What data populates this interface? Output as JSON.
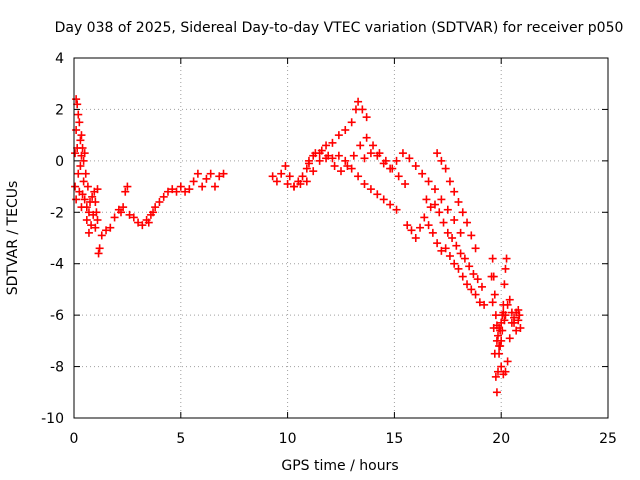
{
  "chart_data": {
    "type": "scatter",
    "title": "Day 038 of 2025, Sidereal Day-to-day VTEC variation (SDTVAR) for receiver p050",
    "xlabel": "GPS time / hours",
    "ylabel": "SDTVAR / TECUs",
    "xlim": [
      0,
      25
    ],
    "ylim": [
      -10,
      4
    ],
    "x_ticks": [
      0,
      5,
      10,
      15,
      20,
      25
    ],
    "y_ticks": [
      -10,
      -8,
      -6,
      -4,
      -2,
      0,
      2,
      4
    ],
    "x_tick_labels": [
      "0",
      "5",
      "10",
      "15",
      "20",
      "25"
    ],
    "y_tick_labels": [
      "-10",
      "-8",
      "-6",
      "-4",
      "-2",
      "0",
      "2",
      "4"
    ],
    "grid": true,
    "marker": "+",
    "series_color": "#ff0000",
    "series": [
      {
        "name": "SDTVAR",
        "x": [
          0.05,
          0.05,
          0.1,
          0.1,
          0.1,
          0.15,
          0.15,
          0.2,
          0.2,
          0.25,
          0.25,
          0.3,
          0.3,
          0.35,
          0.35,
          0.35,
          0.4,
          0.4,
          0.45,
          0.45,
          0.5,
          0.5,
          0.55,
          0.6,
          0.6,
          0.65,
          0.7,
          0.7,
          0.75,
          0.8,
          0.85,
          0.9,
          0.95,
          1.0,
          1.0,
          1.05,
          1.1,
          1.1,
          1.15,
          1.2,
          1.3,
          1.5,
          1.7,
          1.9,
          2.1,
          2.2,
          2.3,
          2.4,
          2.5,
          2.6,
          2.8,
          3.0,
          3.2,
          3.4,
          3.5,
          3.6,
          3.7,
          3.8,
          4.0,
          4.2,
          4.4,
          4.6,
          4.8,
          5.0,
          5.2,
          5.4,
          5.6,
          5.8,
          6.0,
          6.2,
          6.4,
          6.6,
          6.8,
          7.0,
          9.3,
          9.5,
          9.7,
          9.9,
          10.1,
          10.3,
          10.5,
          10.7,
          10.9,
          11.0,
          11.2,
          11.5,
          11.8,
          12.1,
          12.4,
          12.7,
          13.0,
          13.2,
          13.3,
          13.5,
          13.7,
          10.0,
          10.3,
          10.6,
          10.9,
          11.2,
          11.5,
          11.8,
          12.1,
          12.4,
          12.7,
          13.0,
          13.3,
          13.6,
          13.9,
          14.2,
          14.5,
          14.8,
          15.1,
          11.0,
          11.3,
          11.6,
          11.9,
          12.2,
          12.5,
          12.8,
          13.1,
          13.4,
          13.7,
          14.0,
          14.3,
          14.6,
          14.9,
          15.2,
          15.5,
          13.6,
          13.9,
          14.2,
          14.5,
          14.8,
          15.1,
          15.4,
          15.7,
          16.0,
          16.3,
          16.6,
          16.9,
          17.2,
          17.5,
          17.8,
          18.1,
          15.6,
          15.8,
          16.0,
          16.2,
          16.4,
          16.6,
          16.8,
          17.0,
          17.2,
          17.4,
          17.6,
          17.8,
          18.0,
          18.2,
          18.4,
          18.6,
          18.8,
          19.0,
          19.2,
          16.5,
          16.7,
          16.9,
          17.1,
          17.3,
          17.5,
          17.7,
          17.9,
          18.1,
          18.3,
          18.5,
          18.7,
          18.9,
          19.1,
          17.0,
          17.2,
          17.4,
          17.6,
          17.8,
          18.0,
          18.2,
          18.4,
          18.6,
          18.8,
          19.6,
          19.65,
          19.7,
          19.75,
          19.8,
          19.85,
          19.9,
          19.95,
          20.0,
          20.05,
          20.1,
          20.15,
          20.2,
          20.3,
          20.4,
          20.5,
          20.6,
          20.7,
          20.8,
          20.85,
          20.9,
          19.8,
          19.9,
          20.0,
          20.1,
          20.2,
          20.3,
          20.4,
          20.5,
          20.6,
          20.7,
          20.8,
          19.55,
          19.6,
          19.65,
          19.7,
          19.75,
          19.8,
          19.85,
          19.9,
          19.95,
          20.0,
          20.05,
          20.1,
          20.15,
          20.2,
          20.25
        ],
        "y": [
          -1.0,
          0.3,
          2.4,
          1.2,
          -1.5,
          2.2,
          0.5,
          1.8,
          -0.5,
          1.5,
          -1.2,
          0.8,
          -0.2,
          1.0,
          -1.8,
          0.2,
          0.5,
          -1.3,
          0.0,
          -0.8,
          0.3,
          -1.5,
          -0.5,
          -1.8,
          -2.3,
          -1.0,
          -2.0,
          -2.8,
          -1.6,
          -2.5,
          -1.4,
          -2.1,
          -1.2,
          -1.6,
          -2.6,
          -2.0,
          -1.1,
          -2.3,
          -3.6,
          -3.4,
          -2.9,
          -2.7,
          -2.6,
          -2.2,
          -1.9,
          -2.0,
          -1.8,
          -1.2,
          -1.0,
          -2.1,
          -2.2,
          -2.4,
          -2.5,
          -2.3,
          -2.4,
          -2.1,
          -2.0,
          -1.8,
          -1.6,
          -1.4,
          -1.2,
          -1.1,
          -1.2,
          -1.0,
          -1.2,
          -1.1,
          -0.8,
          -0.5,
          -1.0,
          -0.7,
          -0.5,
          -1.0,
          -0.6,
          -0.5,
          -0.6,
          -0.8,
          -0.5,
          -0.2,
          -0.6,
          -1.0,
          -0.8,
          -0.6,
          -0.3,
          0.0,
          0.2,
          0.3,
          0.6,
          0.7,
          1.0,
          1.2,
          1.5,
          2.0,
          2.3,
          2.0,
          1.7,
          -0.9,
          -1.0,
          -0.9,
          -0.8,
          -0.4,
          0.0,
          0.1,
          0.1,
          0.2,
          0.0,
          -0.3,
          -0.6,
          -0.9,
          -1.1,
          -1.3,
          -1.5,
          -1.7,
          -1.9,
          -0.1,
          0.3,
          0.4,
          0.2,
          -0.2,
          -0.4,
          -0.2,
          0.2,
          0.6,
          0.9,
          0.6,
          0.3,
          0.0,
          -0.3,
          -0.6,
          -0.9,
          0.1,
          0.3,
          0.2,
          -0.1,
          -0.3,
          0.0,
          0.3,
          0.1,
          -0.2,
          -0.5,
          -0.8,
          -1.1,
          -1.5,
          -1.9,
          -2.3,
          -2.8,
          -2.5,
          -2.7,
          -3.0,
          -2.6,
          -2.2,
          -2.5,
          -2.8,
          -3.2,
          -3.5,
          -3.4,
          -3.7,
          -4.0,
          -4.2,
          -4.5,
          -4.8,
          -5.0,
          -5.2,
          -5.5,
          -5.6,
          -1.5,
          -1.8,
          -1.7,
          -2.0,
          -2.4,
          -2.8,
          -3.0,
          -3.3,
          -3.6,
          -3.8,
          -4.1,
          -4.4,
          -4.6,
          -4.9,
          0.3,
          0.0,
          -0.3,
          -0.8,
          -1.2,
          -1.6,
          -2.0,
          -2.4,
          -2.9,
          -3.4,
          -3.8,
          -4.5,
          -5.2,
          -6.0,
          -6.4,
          -6.8,
          -6.5,
          -7.2,
          -7.0,
          -6.6,
          -5.9,
          -6.2,
          -6.0,
          -5.6,
          -5.4,
          -5.9,
          -6.3,
          -6.6,
          -6.2,
          -6.0,
          -6.5,
          -7.0,
          -7.5,
          -8.0,
          -8.3,
          -8.2,
          -7.8,
          -6.9,
          -6.3,
          -6.1,
          -5.9,
          -5.8,
          -4.5,
          -5.5,
          -6.5,
          -7.5,
          -8.4,
          -9.0,
          -8.2,
          -7.2,
          -6.6,
          -6.3,
          -6.0,
          -5.6,
          -4.8,
          -4.2,
          -3.8
        ]
      }
    ]
  }
}
